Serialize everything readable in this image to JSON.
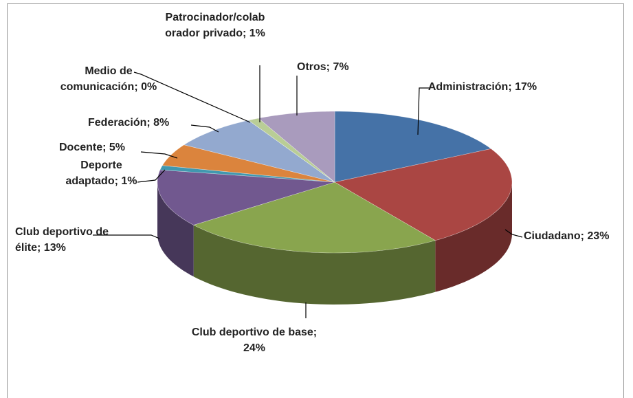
{
  "chart_data": {
    "type": "pie3d",
    "labels": [
      "Administración; 17%",
      "Ciudadano; 23%",
      "Club deportivo de base; 24%",
      "Club deportivo de élite; 13%",
      "Deporte adaptado; 1%",
      "Docente; 5%",
      "Federación; 8%",
      "Medio de comunicación; 0%",
      "Patrocinador/colaborador privado; 1%",
      "Otros; 7%"
    ],
    "values": [
      17,
      23,
      24,
      13,
      1,
      5,
      8,
      0,
      1,
      7
    ],
    "colors": [
      "#4572a7",
      "#aa4643",
      "#89a54e",
      "#71588f",
      "#4198af",
      "#db843d",
      "#93a9cf",
      "#d19392",
      "#b9cd96",
      "#a99bbd"
    ]
  }
}
